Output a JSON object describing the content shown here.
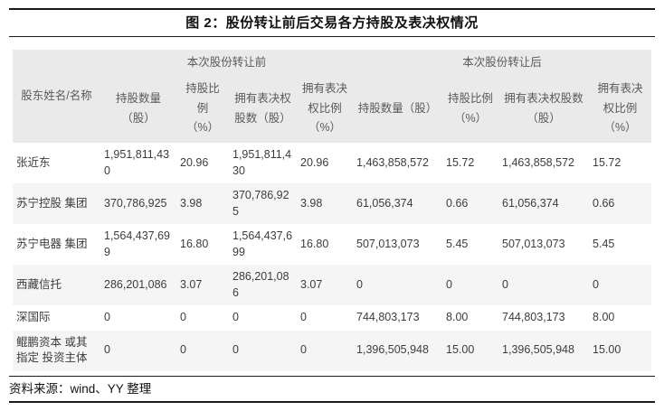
{
  "figure": {
    "title": "图 2：股份转让前后交易各方持股及表决权情况",
    "source": "资料来源：wind、YY 整理"
  },
  "colors": {
    "header_bg": "#eaeaea",
    "stripe_bg": "#f5f5f5",
    "rule": "#1a1a1a",
    "header_text": "#5a5a5a",
    "body_text": "#3c3c3c"
  },
  "table": {
    "name_header": "股东姓名/名称",
    "groups": [
      {
        "label": "本次股份转让前",
        "cols": [
          "持股数量\n（股）",
          "持股比\n例\n（%）",
          "拥有表决权\n股数（股）",
          "拥有表决\n权比例\n（%）"
        ]
      },
      {
        "label": "本次股份转让后",
        "cols": [
          "持股数量（股）",
          "持股比例\n（%）",
          "拥有表决权股数\n（股）",
          "拥有表决\n权比例\n（%）"
        ]
      }
    ],
    "rows": [
      {
        "name": "张近东",
        "cells": [
          "1,951,811,430",
          "20.96",
          "1,951,811,430",
          "20.96",
          "1,463,858,572",
          "15.72",
          "1,463,858,572",
          "15.72"
        ]
      },
      {
        "name": "苏宁控股 集团",
        "cells": [
          "370,786,925",
          "3.98",
          "370,786,925",
          "3.98",
          "61,056,374",
          "0.66",
          "61,056,374",
          "0.66"
        ]
      },
      {
        "name": "苏宁电器 集团",
        "cells": [
          "1,564,437,699",
          "16.80",
          "1,564,437,699",
          "16.80",
          "507,013,073",
          "5.45",
          "507,013,073",
          "5.45"
        ]
      },
      {
        "name": "西藏信托",
        "cells": [
          "286,201,086",
          "3.07",
          "286,201,086",
          "3.07",
          "0",
          "0",
          "0",
          "0"
        ]
      },
      {
        "name": "深国际",
        "cells": [
          "0",
          "0",
          "0",
          "0",
          "744,803,173",
          "8.00",
          "744,803,173",
          "8.00"
        ]
      },
      {
        "name": "鲲鹏资本 或其指定 投资主体",
        "cells": [
          "0",
          "0",
          "0",
          "0",
          "1,396,505,948",
          "15.00",
          "1,396,505,948",
          "15.00"
        ]
      }
    ]
  }
}
